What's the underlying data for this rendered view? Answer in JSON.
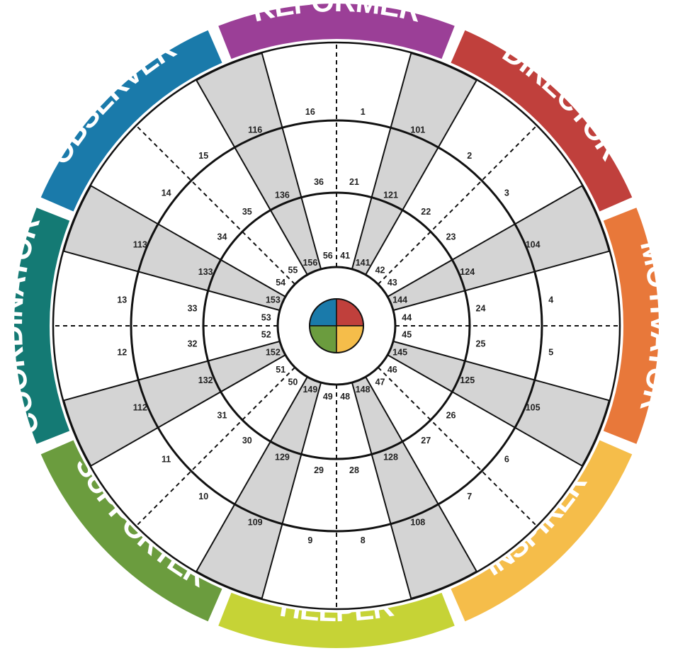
{
  "types": [
    {
      "key": "reformer",
      "label": "REFORMER",
      "color": "#9b3f97"
    },
    {
      "key": "director",
      "label": "DIRECTOR",
      "color": "#c0403c"
    },
    {
      "key": "motivator",
      "label": "MOTIVATOR",
      "color": "#e8783a"
    },
    {
      "key": "inspirer",
      "label": "INSPIRER",
      "color": "#f5bd4a"
    },
    {
      "key": "helper",
      "label": "HELPER",
      "color": "#c6d336"
    },
    {
      "key": "supporter",
      "label": "SUPPORTER",
      "color": "#6b9c3e"
    },
    {
      "key": "coordinator",
      "label": "COORDINATOR",
      "color": "#147a74"
    },
    {
      "key": "observer",
      "label": "OBSERVER",
      "color": "#1a7aaa"
    }
  ],
  "segment_numbers": {
    "outer": [
      "1",
      "2",
      "3",
      "4",
      "5",
      "6",
      "7",
      "8",
      "9",
      "10",
      "11",
      "12",
      "13",
      "14",
      "15",
      "16"
    ],
    "second": [
      "21",
      "22",
      "23",
      "24",
      "25",
      "26",
      "27",
      "28",
      "29",
      "30",
      "31",
      "32",
      "33",
      "34",
      "35",
      "36"
    ],
    "third": [
      "41",
      "42",
      "43",
      "44",
      "45",
      "46",
      "47",
      "48",
      "49",
      "50",
      "51",
      "52",
      "53",
      "54",
      "55",
      "56"
    ],
    "wedge_outer": [
      "101",
      "104",
      "105",
      "108",
      "109",
      "112",
      "113",
      "116"
    ],
    "wedge_mid": [
      "121",
      "124",
      "125",
      "128",
      "129",
      "132",
      "133",
      "136"
    ],
    "wedge_inner": [
      "141",
      "144",
      "145",
      "148",
      "149",
      "152",
      "153",
      "156"
    ]
  },
  "center_colors": [
    "#1a7aaa",
    "#c0403c",
    "#6b9c3e",
    "#f5bd4a"
  ],
  "wedge_fill": "#d4d4d4"
}
